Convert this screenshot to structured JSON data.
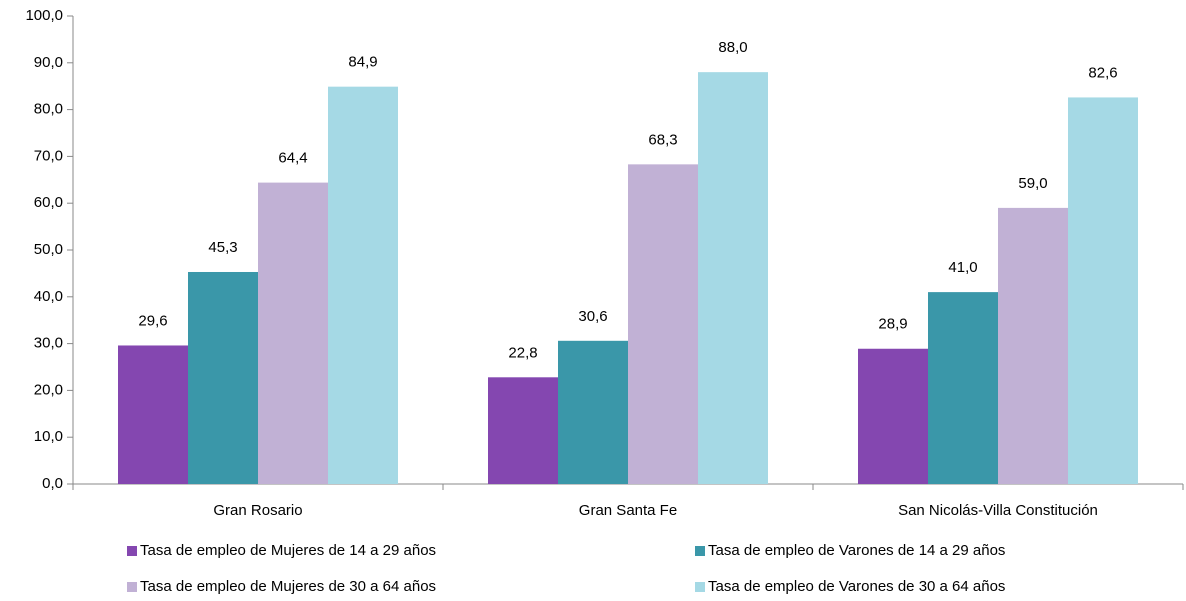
{
  "chart_data": {
    "type": "bar",
    "categories": [
      "Gran Rosario",
      "Gran Santa Fe",
      "San Nicolás-Villa Constitución"
    ],
    "series": [
      {
        "name": "Tasa de empleo de Mujeres de 14 a 29 años",
        "color": "#8447b0",
        "values": [
          29.6,
          22.8,
          28.9
        ],
        "value_labels": [
          "29,6",
          "22,8",
          "28,9"
        ]
      },
      {
        "name": "Tasa de empleo de Varones de 14 a 29 años",
        "color": "#3a97a9",
        "values": [
          45.3,
          30.6,
          41.0
        ],
        "value_labels": [
          "45,3",
          "30,6",
          "41,0"
        ]
      },
      {
        "name": "Tasa de empleo de Mujeres de 30 a 64 años",
        "color": "#c1b1d5",
        "values": [
          64.4,
          68.3,
          59.0
        ],
        "value_labels": [
          "64,4",
          "68,3",
          "59,0"
        ]
      },
      {
        "name": "Tasa de empleo de Varones de 30 a 64 años",
        "color": "#a5d9e5",
        "values": [
          84.9,
          88.0,
          82.6
        ],
        "value_labels": [
          "84,9",
          "88,0",
          "82,6"
        ]
      }
    ],
    "ylim": [
      0,
      100
    ],
    "yticks": [
      {
        "value": 0,
        "label": "0,0"
      },
      {
        "value": 10,
        "label": "10,0"
      },
      {
        "value": 20,
        "label": "20,0"
      },
      {
        "value": 30,
        "label": "30,0"
      },
      {
        "value": 40,
        "label": "40,0"
      },
      {
        "value": 50,
        "label": "50,0"
      },
      {
        "value": 60,
        "label": "60,0"
      },
      {
        "value": 70,
        "label": "70,0"
      },
      {
        "value": 80,
        "label": "80,0"
      },
      {
        "value": 90,
        "label": "90,0"
      },
      {
        "value": 100,
        "label": "100,0"
      }
    ],
    "grid": false
  }
}
